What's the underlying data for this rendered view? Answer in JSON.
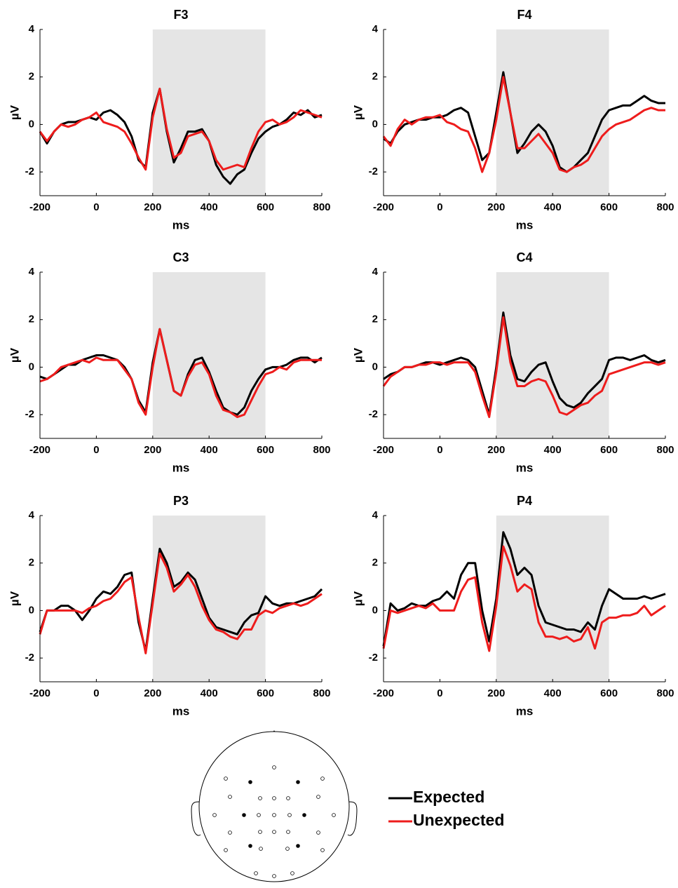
{
  "chart_data": [
    {
      "type": "line",
      "title": "F3",
      "xlabel": "ms",
      "ylabel": "µV",
      "x": [
        -200,
        -175,
        -150,
        -125,
        -100,
        -75,
        -50,
        -25,
        0,
        25,
        50,
        75,
        100,
        125,
        150,
        175,
        200,
        225,
        250,
        275,
        300,
        325,
        350,
        375,
        400,
        425,
        450,
        475,
        500,
        525,
        550,
        575,
        600,
        625,
        650,
        675,
        700,
        725,
        750,
        775,
        800
      ],
      "xlim": [
        -200,
        800
      ],
      "ylim": [
        -3,
        4
      ],
      "xticks": [
        -200,
        0,
        200,
        400,
        600,
        800
      ],
      "yticks": [
        -2,
        0,
        2,
        4
      ],
      "shaded_x": [
        200,
        600
      ],
      "shade_color": "#e5e5e5",
      "series": [
        {
          "name": "Expected",
          "color": "#000000",
          "values": [
            -0.3,
            -0.8,
            -0.3,
            0,
            0.1,
            0.1,
            0.2,
            0.3,
            0.2,
            0.5,
            0.6,
            0.4,
            0.1,
            -0.5,
            -1.5,
            -1.8,
            0.5,
            1.5,
            -0.3,
            -1.6,
            -1.0,
            -0.3,
            -0.3,
            -0.2,
            -0.7,
            -1.7,
            -2.2,
            -2.5,
            -2.1,
            -1.9,
            -1.2,
            -0.6,
            -0.3,
            -0.1,
            0,
            0.2,
            0.5,
            0.4,
            0.6,
            0.3,
            0.4
          ]
        },
        {
          "name": "Unexpected",
          "color": "#ee1c1c",
          "values": [
            -0.3,
            -0.7,
            -0.3,
            0,
            -0.1,
            0,
            0.2,
            0.3,
            0.5,
            0.1,
            0,
            -0.1,
            -0.3,
            -0.8,
            -1.4,
            -1.9,
            0.3,
            1.5,
            -0.2,
            -1.4,
            -1.2,
            -0.5,
            -0.4,
            -0.3,
            -0.7,
            -1.5,
            -1.9,
            -1.8,
            -1.7,
            -1.8,
            -1.0,
            -0.3,
            0.1,
            0.2,
            0,
            0.1,
            0.3,
            0.6,
            0.5,
            0.4,
            0.3
          ]
        }
      ]
    },
    {
      "type": "line",
      "title": "F4",
      "xlabel": "ms",
      "ylabel": "µV",
      "x": [
        -200,
        -175,
        -150,
        -125,
        -100,
        -75,
        -50,
        -25,
        0,
        25,
        50,
        75,
        100,
        125,
        150,
        175,
        200,
        225,
        250,
        275,
        300,
        325,
        350,
        375,
        400,
        425,
        450,
        475,
        500,
        525,
        550,
        575,
        600,
        625,
        650,
        675,
        700,
        725,
        750,
        775,
        800
      ],
      "xlim": [
        -200,
        800
      ],
      "ylim": [
        -3,
        4
      ],
      "xticks": [
        -200,
        0,
        200,
        400,
        600,
        800
      ],
      "yticks": [
        -2,
        0,
        2,
        4
      ],
      "shaded_x": [
        200,
        600
      ],
      "shade_color": "#e5e5e5",
      "series": [
        {
          "color": "#000000",
          "values": [
            -0.6,
            -0.8,
            -0.3,
            0,
            0.1,
            0.2,
            0.2,
            0.3,
            0.3,
            0.4,
            0.6,
            0.7,
            0.5,
            -0.5,
            -1.5,
            -1.2,
            0.5,
            2.2,
            0.5,
            -1.2,
            -0.8,
            -0.3,
            0,
            -0.3,
            -0.9,
            -1.8,
            -2.0,
            -1.8,
            -1.5,
            -1.2,
            -0.5,
            0.2,
            0.6,
            0.7,
            0.8,
            0.8,
            1.0,
            1.2,
            1.0,
            0.9,
            0.9
          ]
        },
        {
          "color": "#ee1c1c",
          "values": [
            -0.5,
            -0.9,
            -0.2,
            0.2,
            0,
            0.2,
            0.3,
            0.3,
            0.4,
            0.1,
            0,
            -0.2,
            -0.3,
            -1.0,
            -2.0,
            -1.2,
            0.2,
            2.0,
            0.5,
            -1.0,
            -1.0,
            -0.7,
            -0.4,
            -0.8,
            -1.2,
            -1.9,
            -2.0,
            -1.8,
            -1.7,
            -1.5,
            -1.0,
            -0.5,
            -0.2,
            0,
            0.1,
            0.2,
            0.4,
            0.6,
            0.7,
            0.6,
            0.6
          ]
        }
      ]
    },
    {
      "type": "line",
      "title": "C3",
      "xlabel": "ms",
      "ylabel": "µV",
      "x": [
        -200,
        -175,
        -150,
        -125,
        -100,
        -75,
        -50,
        -25,
        0,
        25,
        50,
        75,
        100,
        125,
        150,
        175,
        200,
        225,
        250,
        275,
        300,
        325,
        350,
        375,
        400,
        425,
        450,
        475,
        500,
        525,
        550,
        575,
        600,
        625,
        650,
        675,
        700,
        725,
        750,
        775,
        800
      ],
      "xlim": [
        -200,
        800
      ],
      "ylim": [
        -3,
        4
      ],
      "xticks": [
        -200,
        0,
        200,
        400,
        600,
        800
      ],
      "yticks": [
        -2,
        0,
        2,
        4
      ],
      "shaded_x": [
        200,
        600
      ],
      "shade_color": "#e5e5e5",
      "series": [
        {
          "color": "#000000",
          "values": [
            -0.4,
            -0.5,
            -0.3,
            -0.1,
            0.1,
            0.1,
            0.3,
            0.4,
            0.5,
            0.5,
            0.4,
            0.3,
            0,
            -0.5,
            -1.4,
            -1.9,
            0.2,
            1.6,
            0.3,
            -1.0,
            -1.2,
            -0.3,
            0.3,
            0.4,
            -0.2,
            -1.0,
            -1.7,
            -1.9,
            -2.0,
            -1.7,
            -1.0,
            -0.5,
            -0.1,
            0,
            0,
            0.1,
            0.3,
            0.4,
            0.4,
            0.2,
            0.4
          ]
        },
        {
          "color": "#ee1c1c",
          "values": [
            -0.6,
            -0.5,
            -0.3,
            0,
            0.1,
            0.2,
            0.3,
            0.2,
            0.4,
            0.3,
            0.3,
            0.3,
            -0.1,
            -0.5,
            -1.5,
            -2.0,
            0,
            1.6,
            0.3,
            -1.0,
            -1.2,
            -0.4,
            0.1,
            0.2,
            -0.3,
            -1.2,
            -1.8,
            -1.9,
            -2.1,
            -2.0,
            -1.4,
            -0.8,
            -0.3,
            -0.2,
            0,
            -0.1,
            0.2,
            0.3,
            0.3,
            0.3,
            0.3
          ]
        }
      ]
    },
    {
      "type": "line",
      "title": "C4",
      "xlabel": "ms",
      "ylabel": "µV",
      "x": [
        -200,
        -175,
        -150,
        -125,
        -100,
        -75,
        -50,
        -25,
        0,
        25,
        50,
        75,
        100,
        125,
        150,
        175,
        200,
        225,
        250,
        275,
        300,
        325,
        350,
        375,
        400,
        425,
        450,
        475,
        500,
        525,
        550,
        575,
        600,
        625,
        650,
        675,
        700,
        725,
        750,
        775,
        800
      ],
      "xlim": [
        -200,
        800
      ],
      "ylim": [
        -3,
        4
      ],
      "xticks": [
        -200,
        0,
        200,
        400,
        600,
        800
      ],
      "yticks": [
        -2,
        0,
        2,
        4
      ],
      "shaded_x": [
        200,
        600
      ],
      "shade_color": "#e5e5e5",
      "series": [
        {
          "color": "#000000",
          "values": [
            -0.5,
            -0.3,
            -0.2,
            0,
            0,
            0.1,
            0.2,
            0.2,
            0.1,
            0.2,
            0.3,
            0.4,
            0.3,
            0,
            -1.0,
            -2.0,
            0,
            2.3,
            0.5,
            -0.5,
            -0.6,
            -0.2,
            0.1,
            0.2,
            -0.6,
            -1.3,
            -1.6,
            -1.7,
            -1.5,
            -1.1,
            -0.8,
            -0.5,
            0.3,
            0.4,
            0.4,
            0.3,
            0.4,
            0.5,
            0.3,
            0.2,
            0.3
          ]
        },
        {
          "color": "#ee1c1c",
          "values": [
            -0.8,
            -0.4,
            -0.2,
            0,
            0,
            0.1,
            0.1,
            0.2,
            0.2,
            0.1,
            0.2,
            0.2,
            0.2,
            -0.2,
            -1.2,
            -2.1,
            -0.2,
            2.1,
            0.2,
            -0.8,
            -0.8,
            -0.6,
            -0.5,
            -0.6,
            -1.2,
            -1.9,
            -2.0,
            -1.8,
            -1.6,
            -1.5,
            -1.2,
            -1.0,
            -0.3,
            -0.2,
            -0.1,
            0,
            0.1,
            0.2,
            0.2,
            0.1,
            0.2
          ]
        }
      ]
    },
    {
      "type": "line",
      "title": "P3",
      "xlabel": "ms",
      "ylabel": "µV",
      "x": [
        -200,
        -175,
        -150,
        -125,
        -100,
        -75,
        -50,
        -25,
        0,
        25,
        50,
        75,
        100,
        125,
        150,
        175,
        200,
        225,
        250,
        275,
        300,
        325,
        350,
        375,
        400,
        425,
        450,
        475,
        500,
        525,
        550,
        575,
        600,
        625,
        650,
        675,
        700,
        725,
        750,
        775,
        800
      ],
      "xlim": [
        -200,
        800
      ],
      "ylim": [
        -3,
        4
      ],
      "xticks": [
        -200,
        0,
        200,
        400,
        600,
        800
      ],
      "yticks": [
        -2,
        0,
        2,
        4
      ],
      "shaded_x": [
        200,
        600
      ],
      "shade_color": "#e5e5e5",
      "series": [
        {
          "color": "#000000",
          "values": [
            -0.9,
            0,
            0,
            0.2,
            0.2,
            0,
            -0.4,
            0,
            0.5,
            0.8,
            0.7,
            1.0,
            1.5,
            1.6,
            -0.5,
            -1.7,
            0.5,
            2.6,
            2.0,
            1.0,
            1.2,
            1.6,
            1.3,
            0.5,
            -0.3,
            -0.7,
            -0.8,
            -0.9,
            -1.0,
            -0.5,
            -0.2,
            -0.1,
            0.6,
            0.3,
            0.2,
            0.3,
            0.3,
            0.4,
            0.5,
            0.6,
            0.9
          ]
        },
        {
          "color": "#ee1c1c",
          "values": [
            -1.0,
            0,
            0,
            0,
            0,
            0,
            -0.1,
            0.1,
            0.2,
            0.4,
            0.5,
            0.8,
            1.2,
            1.4,
            -0.3,
            -1.8,
            0.3,
            2.4,
            1.8,
            0.8,
            1.1,
            1.5,
            1.0,
            0.2,
            -0.4,
            -0.8,
            -0.9,
            -1.1,
            -1.2,
            -0.8,
            -0.8,
            -0.2,
            0,
            -0.1,
            0.1,
            0.2,
            0.3,
            0.2,
            0.3,
            0.5,
            0.7
          ]
        }
      ]
    },
    {
      "type": "line",
      "title": "P4",
      "xlabel": "ms",
      "ylabel": "µV",
      "x": [
        -200,
        -175,
        -150,
        -125,
        -100,
        -75,
        -50,
        -25,
        0,
        25,
        50,
        75,
        100,
        125,
        150,
        175,
        200,
        225,
        250,
        275,
        300,
        325,
        350,
        375,
        400,
        425,
        450,
        475,
        500,
        525,
        550,
        575,
        600,
        625,
        650,
        675,
        700,
        725,
        750,
        775,
        800
      ],
      "xlim": [
        -200,
        800
      ],
      "ylim": [
        -3,
        4
      ],
      "xticks": [
        -200,
        0,
        200,
        400,
        600,
        800
      ],
      "yticks": [
        -2,
        0,
        2,
        4
      ],
      "shaded_x": [
        200,
        600
      ],
      "shade_color": "#e5e5e5",
      "series": [
        {
          "color": "#000000",
          "values": [
            -1.5,
            0.3,
            0,
            0.1,
            0.3,
            0.2,
            0.2,
            0.4,
            0.5,
            0.8,
            0.5,
            1.5,
            2.0,
            2.0,
            0,
            -1.3,
            0.5,
            3.3,
            2.6,
            1.5,
            1.8,
            1.5,
            0.2,
            -0.5,
            -0.6,
            -0.7,
            -0.8,
            -0.8,
            -0.9,
            -0.5,
            -0.8,
            0.2,
            0.9,
            0.7,
            0.5,
            0.5,
            0.5,
            0.6,
            0.5,
            0.6,
            0.7
          ]
        },
        {
          "color": "#ee1c1c",
          "values": [
            -1.6,
            0,
            -0.1,
            0,
            0.1,
            0.2,
            0.1,
            0.3,
            0,
            0,
            0,
            0.8,
            1.3,
            1.4,
            -0.5,
            -1.7,
            0.2,
            2.7,
            1.9,
            0.8,
            1.1,
            0.9,
            -0.5,
            -1.1,
            -1.1,
            -1.2,
            -1.1,
            -1.3,
            -1.2,
            -0.7,
            -1.6,
            -0.5,
            -0.3,
            -0.3,
            -0.2,
            -0.2,
            -0.1,
            0.2,
            -0.2,
            0,
            0.2
          ]
        }
      ]
    }
  ]
}
